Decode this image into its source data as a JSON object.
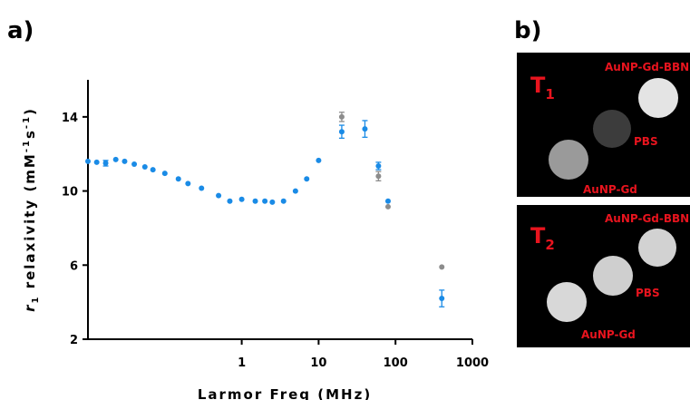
{
  "panels": {
    "a": "a)",
    "b": "b)"
  },
  "chart_data": {
    "type": "scatter",
    "xscale": "log",
    "xlim": [
      0.01,
      1000
    ],
    "ylim": [
      2,
      16
    ],
    "xticks": [
      1,
      10,
      100,
      1000
    ],
    "xtick_labels": [
      "1",
      "10",
      "100",
      "1000"
    ],
    "yticks": [
      2,
      6,
      10,
      14
    ],
    "ytick_labels": [
      "2",
      "6",
      "10",
      "14"
    ],
    "xlabel": "Larmor Freq (MHz)",
    "ylabel": {
      "symbol": "r",
      "subscript": "1",
      "text": " relaxivity (mM",
      "exp1": "-1",
      "mid": "s",
      "exp2": "-1",
      "end": ")"
    },
    "grid": false,
    "series": [
      {
        "color": "#8c8c8c",
        "points": [
          {
            "x": 20,
            "y": 14.0,
            "err": 0.25
          },
          {
            "x": 60,
            "y": 10.8,
            "err": 0.25
          },
          {
            "x": 80,
            "y": 9.15,
            "err": 0
          },
          {
            "x": 400,
            "y": 5.9,
            "err": 0
          }
        ]
      },
      {
        "color": "#1a8be6",
        "points": [
          {
            "x": 0.01,
            "y": 11.6,
            "err": 0
          },
          {
            "x": 0.013,
            "y": 11.55,
            "err": 0
          },
          {
            "x": 0.017,
            "y": 11.5,
            "err": 0.15
          },
          {
            "x": 0.023,
            "y": 11.7,
            "err": 0
          },
          {
            "x": 0.03,
            "y": 11.6,
            "err": 0
          },
          {
            "x": 0.04,
            "y": 11.45,
            "err": 0
          },
          {
            "x": 0.055,
            "y": 11.3,
            "err": 0
          },
          {
            "x": 0.07,
            "y": 11.15,
            "err": 0
          },
          {
            "x": 0.1,
            "y": 10.95,
            "err": 0
          },
          {
            "x": 0.15,
            "y": 10.65,
            "err": 0
          },
          {
            "x": 0.2,
            "y": 10.4,
            "err": 0
          },
          {
            "x": 0.3,
            "y": 10.15,
            "err": 0
          },
          {
            "x": 0.5,
            "y": 9.75,
            "err": 0
          },
          {
            "x": 0.7,
            "y": 9.45,
            "err": 0
          },
          {
            "x": 1.0,
            "y": 9.55,
            "err": 0
          },
          {
            "x": 1.5,
            "y": 9.45,
            "err": 0
          },
          {
            "x": 2.0,
            "y": 9.45,
            "err": 0
          },
          {
            "x": 2.5,
            "y": 9.4,
            "err": 0
          },
          {
            "x": 3.5,
            "y": 9.45,
            "err": 0
          },
          {
            "x": 5.0,
            "y": 10.0,
            "err": 0
          },
          {
            "x": 7.0,
            "y": 10.65,
            "err": 0
          },
          {
            "x": 10,
            "y": 11.65,
            "err": 0
          },
          {
            "x": 20,
            "y": 13.2,
            "err": 0.35
          },
          {
            "x": 40,
            "y": 13.35,
            "err": 0.45
          },
          {
            "x": 60,
            "y": 11.35,
            "err": 0.2
          },
          {
            "x": 80,
            "y": 9.45,
            "err": 0
          },
          {
            "x": 400,
            "y": 4.2,
            "err": 0.45
          }
        ]
      }
    ]
  },
  "mri": {
    "t1": {
      "label": "T",
      "sub": "1",
      "samples": [
        {
          "name": "AuNP-Gd-BBN",
          "fill": "#e4e4e4"
        },
        {
          "name": "PBS",
          "fill": "#3c3c3c"
        },
        {
          "name": "AuNP-Gd",
          "fill": "#9a9a9a"
        }
      ]
    },
    "t2": {
      "label": "T",
      "sub": "2",
      "samples": [
        {
          "name": "AuNP-Gd-BBN",
          "fill": "#d2d2d2"
        },
        {
          "name": "PBS",
          "fill": "#cfcfcf"
        },
        {
          "name": "AuNP-Gd",
          "fill": "#d8d8d8"
        }
      ]
    }
  }
}
